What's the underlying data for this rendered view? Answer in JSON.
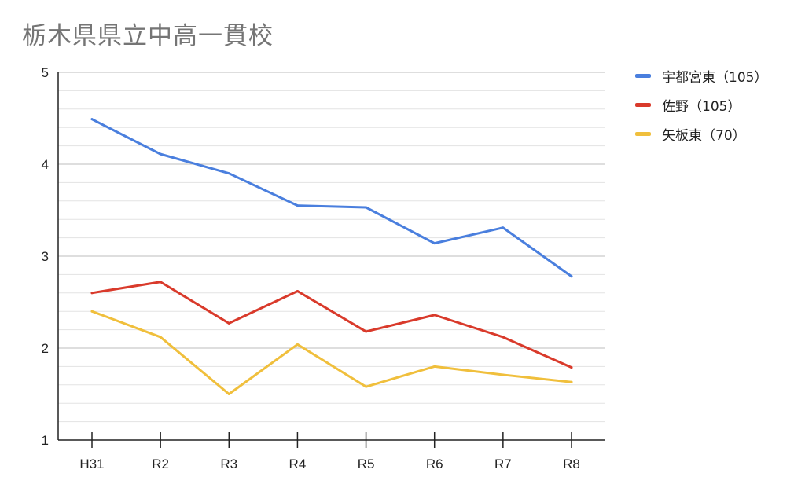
{
  "chart_data": {
    "type": "line",
    "title": "栃木県県立中高一貫校",
    "xlabel": "",
    "ylabel": "",
    "categories": [
      "H31",
      "R2",
      "R3",
      "R4",
      "R5",
      "R6",
      "R7",
      "R8"
    ],
    "ylim": [
      1,
      5
    ],
    "yticks": [
      "1",
      "2",
      "3",
      "4",
      "5"
    ],
    "minor_gridlines_per_major": 5,
    "grid": true,
    "legend_position": "right",
    "series": [
      {
        "name": "宇都宮東（105）",
        "color": "#4a7fde",
        "values": [
          4.49,
          4.11,
          3.9,
          3.55,
          3.53,
          3.14,
          3.31,
          2.78
        ]
      },
      {
        "name": "佐野（105）",
        "color": "#d93a2b",
        "values": [
          2.6,
          2.72,
          2.27,
          2.62,
          2.18,
          2.36,
          2.12,
          1.79
        ]
      },
      {
        "name": "矢板東（70）",
        "color": "#f0bf3c",
        "values": [
          2.4,
          2.12,
          1.5,
          2.04,
          1.58,
          1.8,
          1.71,
          1.63
        ]
      }
    ]
  }
}
